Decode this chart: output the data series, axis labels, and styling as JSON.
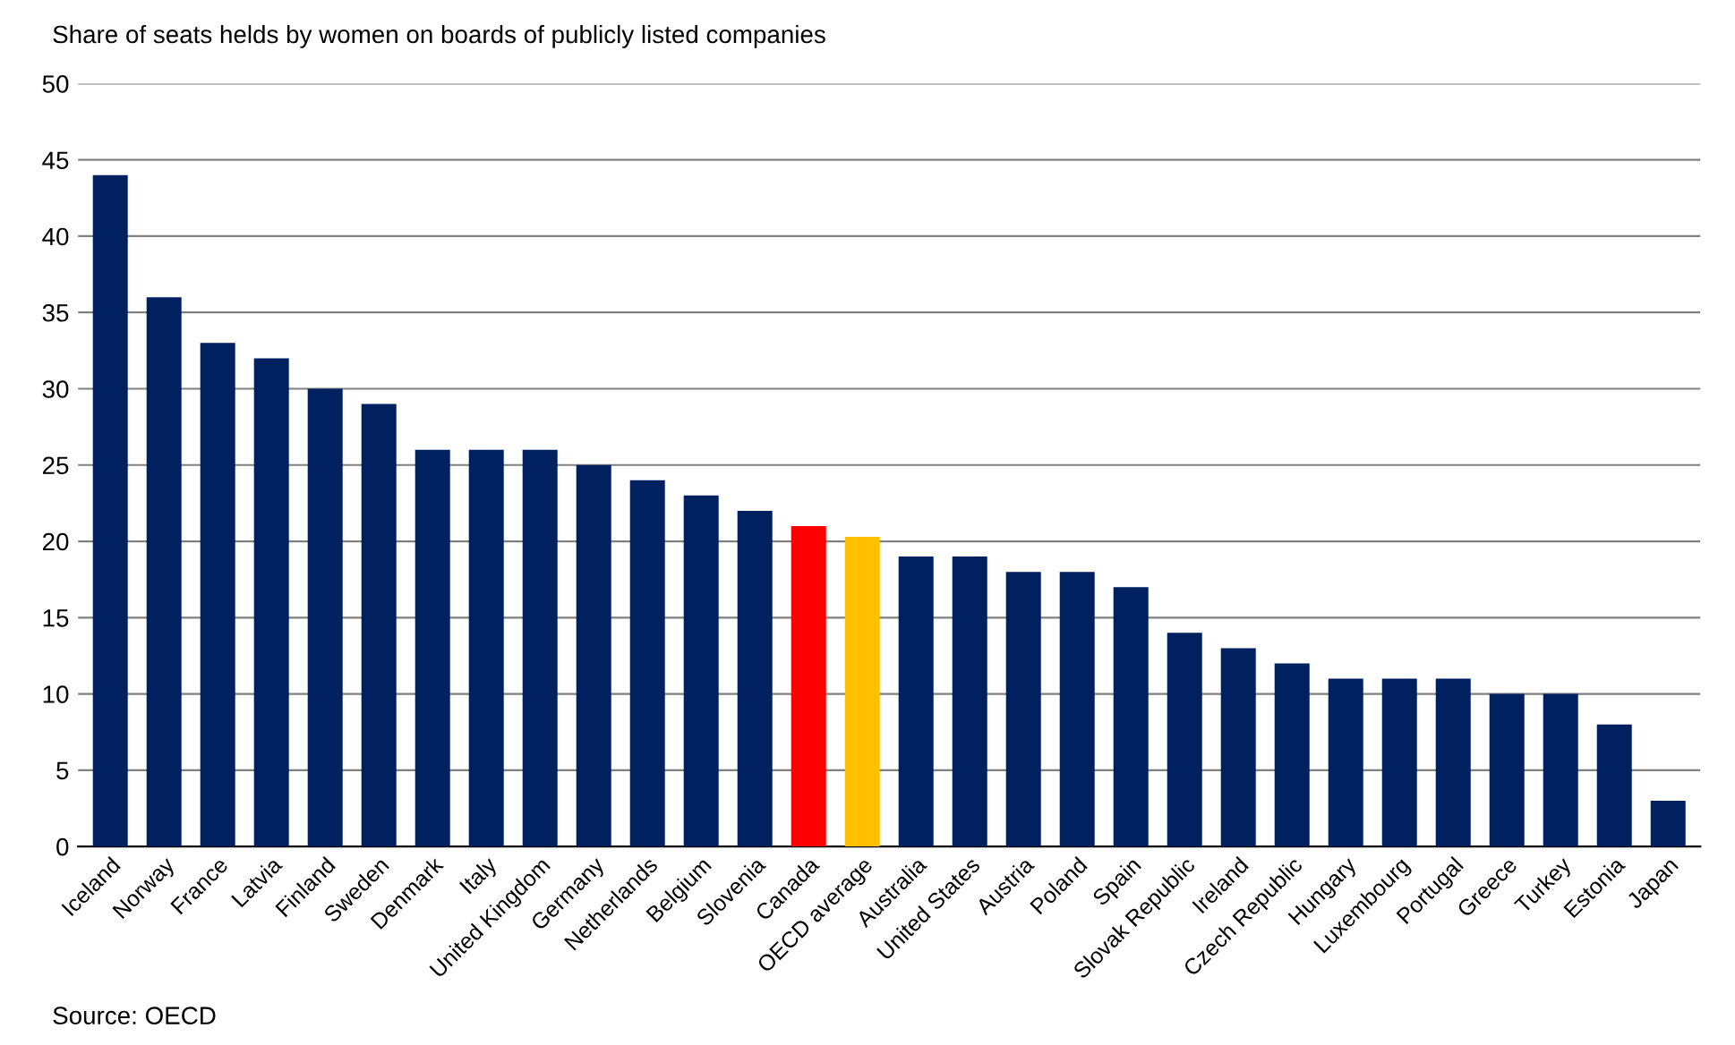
{
  "chart_data": {
    "type": "bar",
    "title": "Share of seats helds by women on boards of publicly listed companies",
    "categories": [
      "Iceland",
      "Norway",
      "France",
      "Latvia",
      "Finland",
      "Sweden",
      "Denmark",
      "Italy",
      "United Kingdom",
      "Germany",
      "Netherlands",
      "Belgium",
      "Slovenia",
      "Canada",
      "OECD average",
      "Australia",
      "United States",
      "Austria",
      "Poland",
      "Spain",
      "Slovak Republic",
      "Ireland",
      "Czech Republic",
      "Hungary",
      "Luxembourg",
      "Portugal",
      "Greece",
      "Turkey",
      "Estonia",
      "Japan"
    ],
    "values": [
      44,
      36,
      33,
      32,
      30,
      29,
      26,
      26,
      26,
      25,
      24,
      23,
      22,
      21,
      20.3,
      19,
      19,
      18,
      18,
      17,
      14,
      13,
      12,
      11,
      11,
      11,
      10,
      10,
      8,
      3
    ],
    "colors": [
      "#002060",
      "#002060",
      "#002060",
      "#002060",
      "#002060",
      "#002060",
      "#002060",
      "#002060",
      "#002060",
      "#002060",
      "#002060",
      "#002060",
      "#002060",
      "#ff0000",
      "#ffc000",
      "#002060",
      "#002060",
      "#002060",
      "#002060",
      "#002060",
      "#002060",
      "#002060",
      "#002060",
      "#002060",
      "#002060",
      "#002060",
      "#002060",
      "#002060",
      "#002060",
      "#002060"
    ],
    "ylim": [
      0,
      50
    ],
    "yticks": [
      0,
      5,
      10,
      15,
      20,
      25,
      30,
      35,
      40,
      45,
      50
    ],
    "grid": "y",
    "annotations": [
      "Source: OECD"
    ]
  }
}
